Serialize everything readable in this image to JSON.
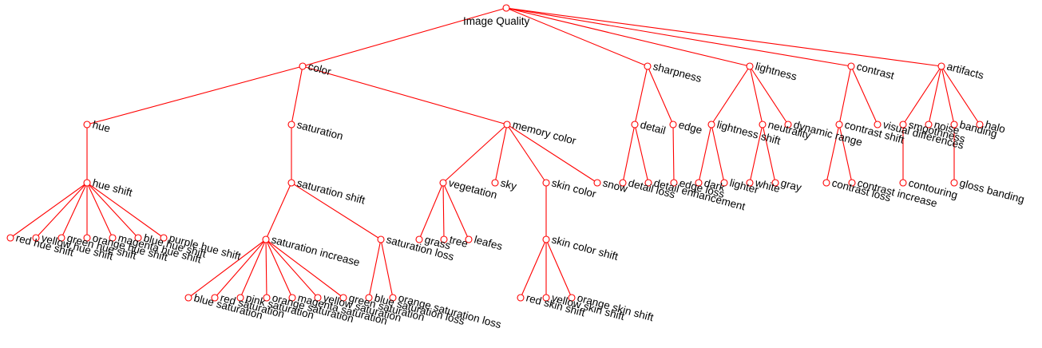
{
  "diagram": {
    "type": "tree",
    "edge_color": "#ff0000",
    "node_color": "#ff0000",
    "text_color": "#000000",
    "root": "Image Quality",
    "nodes": [
      {
        "id": "image-quality",
        "label": "Image Quality",
        "parent": null
      },
      {
        "id": "color",
        "label": "color",
        "parent": "image-quality"
      },
      {
        "id": "sharpness",
        "label": "sharpness",
        "parent": "image-quality"
      },
      {
        "id": "lightness",
        "label": "lightness",
        "parent": "image-quality"
      },
      {
        "id": "contrast",
        "label": "contrast",
        "parent": "image-quality"
      },
      {
        "id": "artifacts",
        "label": "artifacts",
        "parent": "image-quality"
      },
      {
        "id": "hue",
        "label": "hue",
        "parent": "color"
      },
      {
        "id": "saturation",
        "label": "saturation",
        "parent": "color"
      },
      {
        "id": "memory-color",
        "label": "memory color",
        "parent": "color"
      },
      {
        "id": "hue-shift",
        "label": "hue shift",
        "parent": "hue"
      },
      {
        "id": "red-hue-shift",
        "label": "red hue shift",
        "parent": "hue-shift"
      },
      {
        "id": "yellow-hue-shift",
        "label": "yellow hue shift",
        "parent": "hue-shift"
      },
      {
        "id": "green-hue-shift",
        "label": "green hue shift",
        "parent": "hue-shift"
      },
      {
        "id": "orange-hue-shift",
        "label": "orange hue shift",
        "parent": "hue-shift"
      },
      {
        "id": "magenta-hue-shift",
        "label": "magenta hue shift",
        "parent": "hue-shift"
      },
      {
        "id": "blue-hue-shift",
        "label": "blue hue shift",
        "parent": "hue-shift"
      },
      {
        "id": "purple-hue-shift",
        "label": "purple hue shift",
        "parent": "hue-shift"
      },
      {
        "id": "saturation-shift",
        "label": "saturation shift",
        "parent": "saturation"
      },
      {
        "id": "saturation-increase",
        "label": "saturation increase",
        "parent": "saturation-shift"
      },
      {
        "id": "saturation-loss",
        "label": "saturation loss",
        "parent": "saturation-shift"
      },
      {
        "id": "blue-saturation",
        "label": "blue saturation",
        "parent": "saturation-increase"
      },
      {
        "id": "red-saturation",
        "label": "red saturation",
        "parent": "saturation-increase"
      },
      {
        "id": "pink-saturation",
        "label": "pink saturation",
        "parent": "saturation-increase"
      },
      {
        "id": "orange-saturation",
        "label": "orange saturation",
        "parent": "saturation-increase"
      },
      {
        "id": "magenta-saturation",
        "label": "magenta saturation",
        "parent": "saturation-increase"
      },
      {
        "id": "yellow-saturation",
        "label": "yellow saturation",
        "parent": "saturation-increase"
      },
      {
        "id": "green-saturation",
        "label": "green saturation",
        "parent": "saturation-increase"
      },
      {
        "id": "blue-saturation-loss",
        "label": "blue saturation loss",
        "parent": "saturation-loss"
      },
      {
        "id": "orange-saturation-loss",
        "label": "orange saturation loss",
        "parent": "saturation-loss"
      },
      {
        "id": "vegetation",
        "label": "vegetation",
        "parent": "memory-color"
      },
      {
        "id": "sky",
        "label": "sky",
        "parent": "memory-color"
      },
      {
        "id": "skin-color",
        "label": "skin color",
        "parent": "memory-color"
      },
      {
        "id": "snow",
        "label": "snow",
        "parent": "memory-color"
      },
      {
        "id": "grass",
        "label": "grass",
        "parent": "vegetation"
      },
      {
        "id": "tree",
        "label": "tree",
        "parent": "vegetation"
      },
      {
        "id": "leafes",
        "label": "leafes",
        "parent": "vegetation"
      },
      {
        "id": "skin-color-shift",
        "label": "skin color shift",
        "parent": "skin-color"
      },
      {
        "id": "red-skin-shift",
        "label": "red skin shift",
        "parent": "skin-color-shift"
      },
      {
        "id": "yellow-skin-shift",
        "label": "yellow skin shift",
        "parent": "skin-color-shift"
      },
      {
        "id": "orange-skin-shift",
        "label": "orange skin shift",
        "parent": "skin-color-shift"
      },
      {
        "id": "detail",
        "label": "detail",
        "parent": "sharpness"
      },
      {
        "id": "edge",
        "label": "edge",
        "parent": "sharpness"
      },
      {
        "id": "detail-loss",
        "label": "detail loss",
        "parent": "detail"
      },
      {
        "id": "detail-enhancement",
        "label": "detail enhancement",
        "parent": "detail"
      },
      {
        "id": "edge-loss",
        "label": "edge loss",
        "parent": "edge"
      },
      {
        "id": "lightness-shift",
        "label": "lightness shift",
        "parent": "lightness"
      },
      {
        "id": "neutrality",
        "label": "neutrality",
        "parent": "lightness"
      },
      {
        "id": "dynamic-range",
        "label": "dynamic range",
        "parent": "lightness"
      },
      {
        "id": "dark",
        "label": "dark",
        "parent": "lightness-shift"
      },
      {
        "id": "lighter",
        "label": "lighter",
        "parent": "lightness-shift"
      },
      {
        "id": "white",
        "label": "white",
        "parent": "neutrality"
      },
      {
        "id": "gray",
        "label": "gray",
        "parent": "neutrality"
      },
      {
        "id": "contrast-shift",
        "label": "contrast shift",
        "parent": "contrast"
      },
      {
        "id": "visual-differences",
        "label": "visual differences",
        "parent": "contrast"
      },
      {
        "id": "contrast-loss",
        "label": "contrast loss",
        "parent": "contrast-shift"
      },
      {
        "id": "contrast-increase",
        "label": "contrast increase",
        "parent": "contrast-shift"
      },
      {
        "id": "smoothness",
        "label": "smoothness",
        "parent": "artifacts"
      },
      {
        "id": "noise",
        "label": "noise",
        "parent": "artifacts"
      },
      {
        "id": "banding",
        "label": "banding",
        "parent": "artifacts"
      },
      {
        "id": "halo",
        "label": "halo",
        "parent": "artifacts"
      },
      {
        "id": "contouring",
        "label": "contouring",
        "parent": "smoothness"
      },
      {
        "id": "gloss-banding",
        "label": "gloss banding",
        "parent": "banding"
      }
    ]
  }
}
